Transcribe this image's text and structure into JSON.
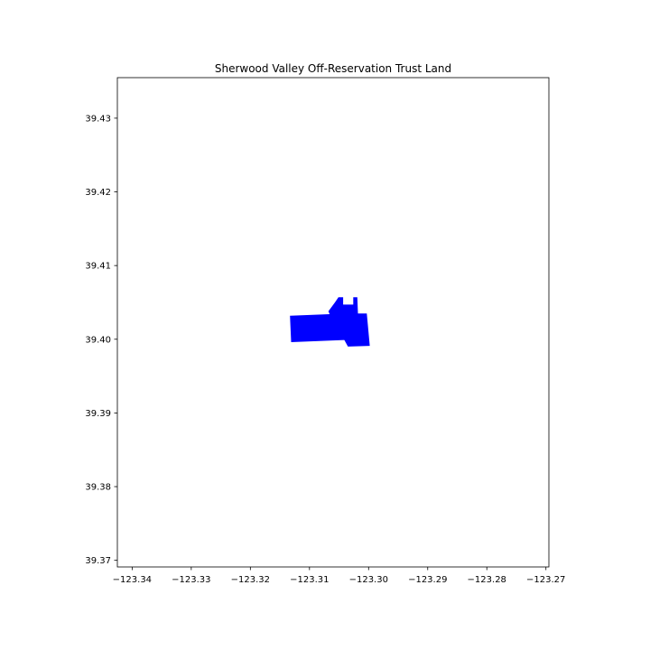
{
  "chart_data": {
    "type": "map",
    "title": "Sherwood Valley Off-Reservation Trust Land",
    "xlabel": "",
    "ylabel": "",
    "xlim": [
      -123.3425,
      -123.2695
    ],
    "ylim": [
      39.3691,
      39.4355
    ],
    "grid": false,
    "x_ticks": [
      -123.34,
      -123.33,
      -123.32,
      -123.31,
      -123.3,
      -123.29,
      -123.28,
      -123.27
    ],
    "x_tick_labels": [
      "−123.34",
      "−123.33",
      "−123.32",
      "−123.31",
      "−123.30",
      "−123.29",
      "−123.28",
      "−123.27"
    ],
    "y_ticks": [
      39.37,
      39.38,
      39.39,
      39.4,
      39.41,
      39.42,
      39.43
    ],
    "y_tick_labels": [
      "39.37",
      "39.38",
      "39.39",
      "39.40",
      "39.41",
      "39.42",
      "39.43"
    ],
    "polygons": [
      {
        "fill": "#0000ff",
        "coordinates": [
          [
            -123.3133,
            39.4032
          ],
          [
            -123.3066,
            39.4034
          ],
          [
            -123.3068,
            39.4038
          ],
          [
            -123.3057,
            39.405
          ],
          [
            -123.3051,
            39.4057
          ],
          [
            -123.3043,
            39.4057
          ],
          [
            -123.3043,
            39.4047
          ],
          [
            -123.3026,
            39.4047
          ],
          [
            -123.3026,
            39.4057
          ],
          [
            -123.3019,
            39.4057
          ],
          [
            -123.3018,
            39.4035
          ],
          [
            -123.3003,
            39.4035
          ],
          [
            -123.2998,
            39.3991
          ],
          [
            -123.3035,
            39.399
          ],
          [
            -123.3041,
            39.3999
          ],
          [
            -123.3131,
            39.3996
          ]
        ]
      }
    ]
  }
}
